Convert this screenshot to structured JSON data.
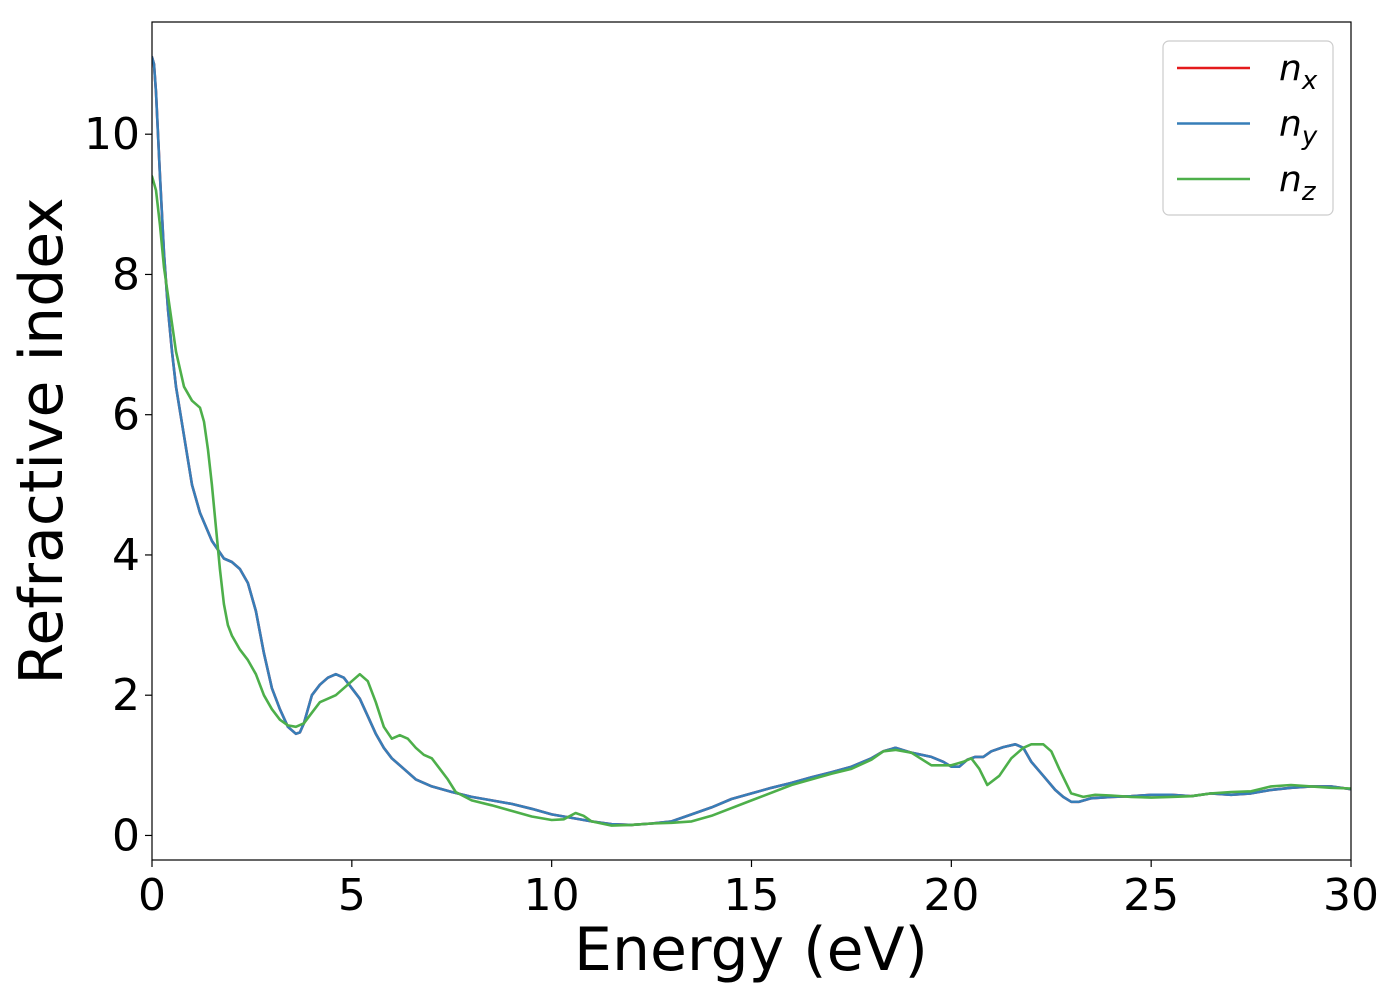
{
  "chart_data": {
    "type": "line",
    "title": "",
    "xlabel": "Energy (eV)",
    "ylabel": "Refractive index",
    "xlim": [
      0,
      30
    ],
    "ylim": [
      -0.35,
      11.6
    ],
    "xticks": [
      0,
      5,
      10,
      15,
      20,
      25,
      30
    ],
    "yticks": [
      0,
      2,
      4,
      6,
      8,
      10
    ],
    "xtick_labels": [
      "0",
      "5",
      "10",
      "15",
      "20",
      "25",
      "30"
    ],
    "ytick_labels": [
      "0",
      "2",
      "4",
      "6",
      "8",
      "10"
    ],
    "grid": false,
    "legend_position": "top-right",
    "series": [
      {
        "name": "n_x",
        "label_main": "n",
        "label_sub": "x",
        "color": "#e41a1c",
        "x": [
          0,
          0.05,
          0.1,
          0.2,
          0.3,
          0.4,
          0.5,
          0.6,
          0.8,
          1.0,
          1.2,
          1.5,
          1.8,
          2.0,
          2.2,
          2.4,
          2.6,
          2.8,
          3.0,
          3.2,
          3.4,
          3.6,
          3.7,
          3.8,
          4.0,
          4.2,
          4.4,
          4.6,
          4.8,
          5.0,
          5.2,
          5.4,
          5.6,
          5.8,
          6.0,
          6.3,
          6.6,
          7.0,
          7.5,
          8.0,
          8.5,
          9.0,
          9.5,
          10.0,
          10.5,
          11.0,
          11.5,
          12.0,
          12.5,
          13.0,
          13.5,
          14.0,
          14.5,
          15.0,
          15.5,
          16.0,
          16.5,
          17.0,
          17.5,
          18.0,
          18.3,
          18.6,
          19.0,
          19.5,
          19.8,
          20.0,
          20.2,
          20.4,
          20.6,
          20.8,
          21.0,
          21.3,
          21.6,
          21.8,
          22.0,
          22.3,
          22.6,
          22.8,
          23.0,
          23.2,
          23.5,
          24.0,
          24.5,
          25.0,
          25.5,
          26.0,
          26.5,
          27.0,
          27.5,
          28.0,
          28.5,
          29.0,
          29.5,
          30.0
        ],
        "values": [
          11.1,
          11.0,
          10.6,
          9.4,
          8.3,
          7.5,
          6.9,
          6.4,
          5.7,
          5.0,
          4.6,
          4.2,
          3.95,
          3.9,
          3.8,
          3.6,
          3.2,
          2.6,
          2.1,
          1.8,
          1.55,
          1.45,
          1.47,
          1.6,
          2.0,
          2.15,
          2.25,
          2.3,
          2.25,
          2.1,
          1.95,
          1.7,
          1.45,
          1.25,
          1.1,
          0.95,
          0.8,
          0.7,
          0.62,
          0.55,
          0.5,
          0.45,
          0.38,
          0.3,
          0.25,
          0.2,
          0.16,
          0.15,
          0.17,
          0.2,
          0.3,
          0.4,
          0.52,
          0.6,
          0.68,
          0.75,
          0.83,
          0.9,
          0.98,
          1.1,
          1.2,
          1.25,
          1.18,
          1.12,
          1.05,
          0.98,
          0.98,
          1.08,
          1.12,
          1.12,
          1.2,
          1.26,
          1.3,
          1.25,
          1.05,
          0.85,
          0.65,
          0.55,
          0.48,
          0.48,
          0.53,
          0.55,
          0.56,
          0.58,
          0.58,
          0.56,
          0.6,
          0.58,
          0.6,
          0.65,
          0.68,
          0.7,
          0.7,
          0.66
        ]
      },
      {
        "name": "n_y",
        "label_main": "n",
        "label_sub": "y",
        "color": "#377eb8",
        "x": [
          0,
          0.05,
          0.1,
          0.2,
          0.3,
          0.4,
          0.5,
          0.6,
          0.8,
          1.0,
          1.2,
          1.5,
          1.8,
          2.0,
          2.2,
          2.4,
          2.6,
          2.8,
          3.0,
          3.2,
          3.4,
          3.6,
          3.7,
          3.8,
          4.0,
          4.2,
          4.4,
          4.6,
          4.8,
          5.0,
          5.2,
          5.4,
          5.6,
          5.8,
          6.0,
          6.3,
          6.6,
          7.0,
          7.5,
          8.0,
          8.5,
          9.0,
          9.5,
          10.0,
          10.5,
          11.0,
          11.5,
          12.0,
          12.5,
          13.0,
          13.5,
          14.0,
          14.5,
          15.0,
          15.5,
          16.0,
          16.5,
          17.0,
          17.5,
          18.0,
          18.3,
          18.6,
          19.0,
          19.5,
          19.8,
          20.0,
          20.2,
          20.4,
          20.6,
          20.8,
          21.0,
          21.3,
          21.6,
          21.8,
          22.0,
          22.3,
          22.6,
          22.8,
          23.0,
          23.2,
          23.5,
          24.0,
          24.5,
          25.0,
          25.5,
          26.0,
          26.5,
          27.0,
          27.5,
          28.0,
          28.5,
          29.0,
          29.5,
          30.0
        ],
        "values": [
          11.1,
          11.0,
          10.6,
          9.4,
          8.3,
          7.5,
          6.9,
          6.4,
          5.7,
          5.0,
          4.6,
          4.2,
          3.95,
          3.9,
          3.8,
          3.6,
          3.2,
          2.6,
          2.1,
          1.8,
          1.55,
          1.45,
          1.47,
          1.6,
          2.0,
          2.15,
          2.25,
          2.3,
          2.25,
          2.1,
          1.95,
          1.7,
          1.45,
          1.25,
          1.1,
          0.95,
          0.8,
          0.7,
          0.62,
          0.55,
          0.5,
          0.45,
          0.38,
          0.3,
          0.25,
          0.2,
          0.16,
          0.15,
          0.17,
          0.2,
          0.3,
          0.4,
          0.52,
          0.6,
          0.68,
          0.75,
          0.83,
          0.9,
          0.98,
          1.1,
          1.2,
          1.25,
          1.18,
          1.12,
          1.05,
          0.98,
          0.98,
          1.08,
          1.12,
          1.12,
          1.2,
          1.26,
          1.3,
          1.25,
          1.05,
          0.85,
          0.65,
          0.55,
          0.48,
          0.48,
          0.53,
          0.55,
          0.56,
          0.58,
          0.58,
          0.56,
          0.6,
          0.58,
          0.6,
          0.65,
          0.68,
          0.7,
          0.7,
          0.66
        ]
      },
      {
        "name": "n_z",
        "label_main": "n",
        "label_sub": "z",
        "color": "#4daf4a",
        "x": [
          0,
          0.1,
          0.2,
          0.3,
          0.4,
          0.5,
          0.6,
          0.8,
          1.0,
          1.2,
          1.3,
          1.4,
          1.5,
          1.6,
          1.7,
          1.8,
          1.9,
          2.0,
          2.2,
          2.4,
          2.6,
          2.8,
          3.0,
          3.2,
          3.4,
          3.6,
          3.8,
          4.0,
          4.2,
          4.4,
          4.6,
          4.8,
          5.0,
          5.2,
          5.4,
          5.6,
          5.8,
          6.0,
          6.2,
          6.4,
          6.6,
          6.8,
          7.0,
          7.2,
          7.4,
          7.6,
          8.0,
          8.5,
          9.0,
          9.5,
          10.0,
          10.3,
          10.6,
          10.8,
          11.0,
          11.5,
          12.0,
          12.5,
          13.0,
          13.5,
          14.0,
          15.0,
          16.0,
          17.0,
          17.5,
          18.0,
          18.3,
          18.6,
          19.0,
          19.5,
          20.0,
          20.3,
          20.5,
          20.7,
          20.9,
          21.2,
          21.5,
          21.8,
          22.0,
          22.3,
          22.5,
          22.7,
          23.0,
          23.3,
          23.6,
          24.0,
          24.5,
          25.0,
          25.5,
          26.0,
          26.5,
          27.0,
          27.5,
          28.0,
          28.5,
          29.0,
          29.5,
          30.0
        ],
        "values": [
          9.4,
          9.2,
          8.7,
          8.1,
          7.7,
          7.3,
          6.9,
          6.4,
          6.2,
          6.1,
          5.9,
          5.5,
          5.0,
          4.4,
          3.8,
          3.3,
          3.0,
          2.85,
          2.65,
          2.5,
          2.3,
          2.0,
          1.8,
          1.65,
          1.57,
          1.55,
          1.6,
          1.75,
          1.9,
          1.95,
          2.0,
          2.1,
          2.2,
          2.3,
          2.2,
          1.9,
          1.55,
          1.38,
          1.43,
          1.38,
          1.25,
          1.15,
          1.1,
          0.95,
          0.8,
          0.62,
          0.5,
          0.43,
          0.35,
          0.27,
          0.22,
          0.23,
          0.32,
          0.28,
          0.2,
          0.14,
          0.15,
          0.17,
          0.18,
          0.2,
          0.28,
          0.5,
          0.72,
          0.88,
          0.95,
          1.08,
          1.2,
          1.22,
          1.18,
          1.0,
          1.0,
          1.05,
          1.1,
          0.95,
          0.72,
          0.85,
          1.1,
          1.25,
          1.3,
          1.3,
          1.2,
          0.95,
          0.6,
          0.55,
          0.58,
          0.57,
          0.55,
          0.54,
          0.55,
          0.56,
          0.6,
          0.62,
          0.63,
          0.7,
          0.72,
          0.7,
          0.68,
          0.67
        ]
      }
    ]
  }
}
